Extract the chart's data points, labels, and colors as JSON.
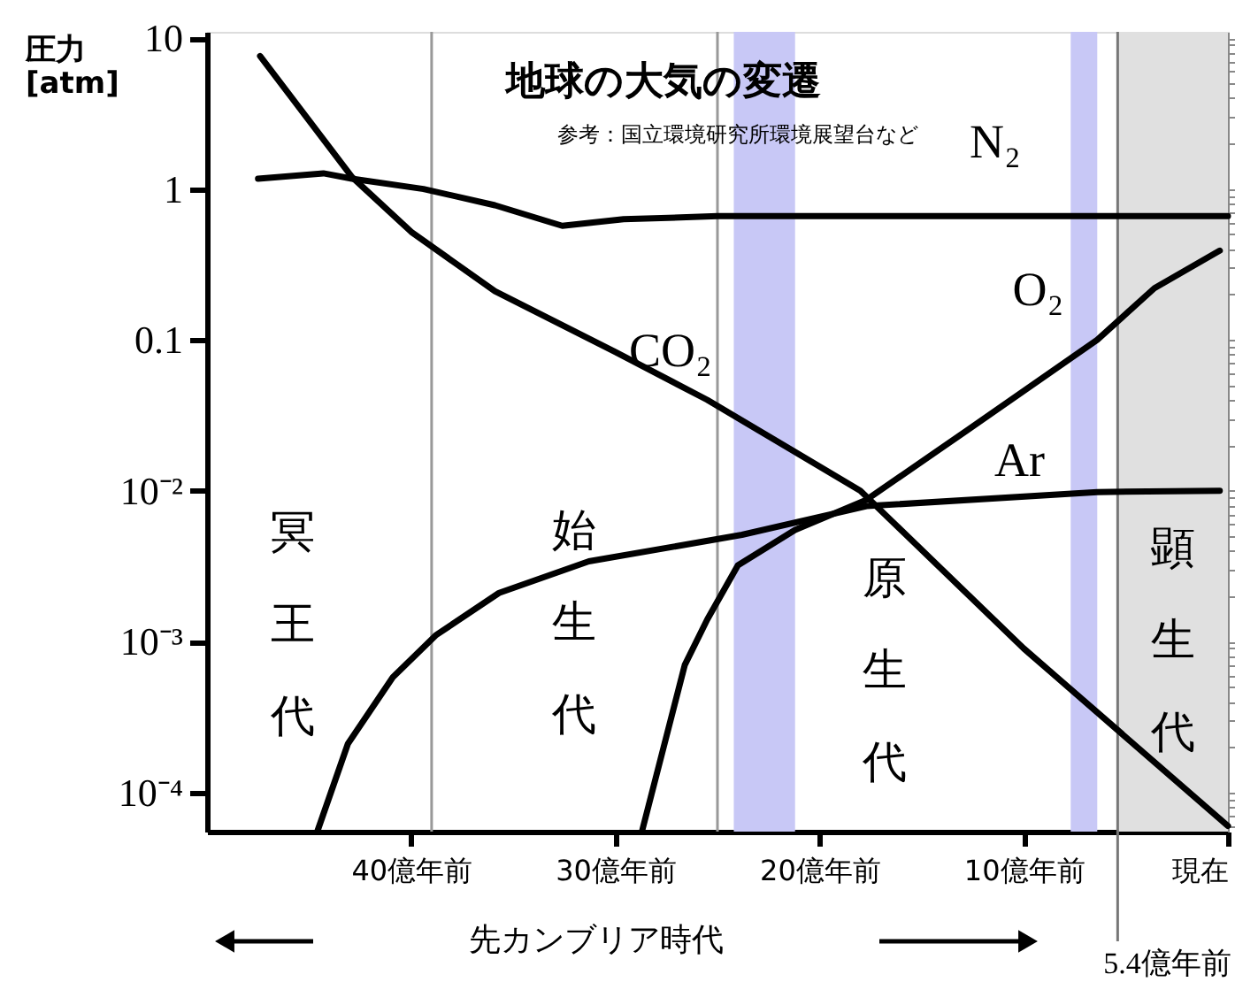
{
  "chart_data": {
    "type": "line",
    "title": "地球の大気の変遷",
    "subtitle": "参考：国立環境研究所環境展望台など",
    "ylabel": "圧力\n[atm]",
    "xlim": [
      50,
      0
    ],
    "xticks": [
      {
        "value": 40,
        "label": "40億年前"
      },
      {
        "value": 30,
        "label": "30億年前"
      },
      {
        "value": 20,
        "label": "20億年前"
      },
      {
        "value": 10,
        "label": "10億年前"
      },
      {
        "value": 0,
        "label": "現在"
      }
    ],
    "ylim": [
      5.5e-05,
      11
    ],
    "yticks": [
      10,
      1,
      0.1,
      {
        "value": 0.01,
        "label": "10⁻²"
      },
      {
        "value": 0.001,
        "label": "10⁻³"
      },
      {
        "value": 0.0001,
        "label": "10⁻⁴"
      }
    ],
    "log": "y",
    "grid": false,
    "marker": "none",
    "line_style": "solid",
    "series": [
      {
        "name": "CO₂",
        "color": "#000000",
        "x": [
          47.4,
          42.9,
          40,
          35.9,
          30,
          25.5,
          18,
          10,
          0
        ],
        "values": [
          7.6,
          1.2,
          0.52,
          0.21,
          0.083,
          0.04,
          0.01,
          0.0009,
          6e-05
        ]
      },
      {
        "name": "N₂",
        "color": "#000000",
        "x": [
          47.5,
          44.3,
          42.9,
          39.4,
          35.9,
          32.6,
          29.6,
          25,
          0
        ],
        "values": [
          1.17,
          1.27,
          1.17,
          1.0,
          0.78,
          0.57,
          0.63,
          0.66,
          0.66
        ]
      },
      {
        "name": "O₂",
        "color": "#000000",
        "x": [
          28.7,
          26.6,
          25.5,
          24,
          21.2,
          17.7,
          12.8,
          6.4,
          3.6,
          0.4
        ],
        "values": [
          5.5e-05,
          0.0007,
          0.0014,
          0.0032,
          0.0055,
          0.0087,
          0.025,
          0.1,
          0.22,
          0.39
        ]
      },
      {
        "name": "Ar",
        "color": "#000000",
        "x": [
          44.6,
          43.1,
          40.9,
          38.8,
          35.7,
          31.3,
          23.8,
          17.7,
          6.4,
          0.4
        ],
        "values": [
          5.5e-05,
          0.00021,
          0.00058,
          0.0011,
          0.0021,
          0.0034,
          0.0051,
          0.0079,
          0.0098,
          0.01
        ]
      }
    ],
    "bands": [
      {
        "axis": "x",
        "from": 24.2,
        "to": 21.2,
        "color": "#c8c8f6"
      },
      {
        "axis": "x",
        "from": 7.7,
        "to": 6.4,
        "color": "#c8c8f6"
      },
      {
        "axis": "x",
        "from": 5.4,
        "to": 0,
        "color": "#e0e0e0"
      }
    ],
    "ref_lines": [
      {
        "axis": "x",
        "value": 39,
        "color": "#999999"
      },
      {
        "axis": "x",
        "value": 25,
        "color": "#999999"
      },
      {
        "axis": "x",
        "value": 5.4,
        "label": "5.4億年前",
        "color": "#777777"
      }
    ],
    "annotations": [
      "冥王代",
      "始生代",
      "原生代",
      "顕生代",
      "先カンブリア時代"
    ]
  }
}
